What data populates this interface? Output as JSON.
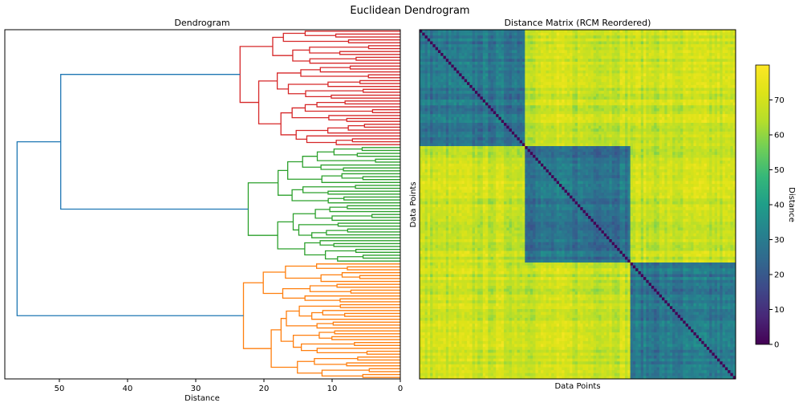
{
  "figure_title": "Euclidean Dendrogram",
  "chart_data": [
    {
      "type": "dendrogram",
      "title": "Dendrogram",
      "xlabel": "Distance",
      "ylabel": "",
      "orientation": "left",
      "xlim": [
        58,
        0
      ],
      "xticks": [
        50,
        40,
        30,
        20,
        10,
        0
      ],
      "n_leaves": 120,
      "clusters": [
        {
          "color": "#d62728",
          "leaf_count": 40,
          "merge_height": 23.5
        },
        {
          "color": "#2ca02c",
          "leaf_count": 40,
          "merge_height": 22.3
        },
        {
          "color": "#ff7f0e",
          "leaf_count": 40,
          "merge_height": 23.0
        }
      ],
      "top_merges": [
        {
          "joins": [
            "red",
            "green"
          ],
          "height": 49.8,
          "color": "#1f77b4"
        },
        {
          "joins": [
            "red+green",
            "orange"
          ],
          "height": 56.2,
          "color": "#1f77b4"
        }
      ]
    },
    {
      "type": "heatmap",
      "title": "Distance Matrix (RCM Reordered)",
      "xlabel": "Data Points",
      "ylabel": "Data Points",
      "size": 120,
      "blocks": 3,
      "colormap": "viridis",
      "vmin": 0,
      "vmax": 80,
      "within_block_mean": 28,
      "between_block_mean": 68,
      "diagonal_value": 0,
      "colorbar": {
        "label": "Distance",
        "ticks": [
          0,
          10,
          20,
          30,
          40,
          50,
          60,
          70
        ]
      }
    }
  ]
}
